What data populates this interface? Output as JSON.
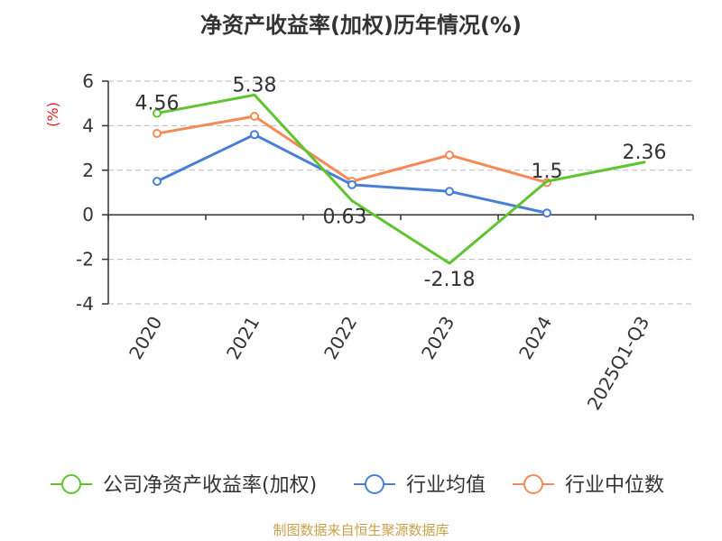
{
  "chart_data": {
    "type": "line",
    "title": "净资产收益率(加权)历年情况(%)",
    "ylabel": "(%)",
    "categories": [
      "2020",
      "2021",
      "2022",
      "2023",
      "2024",
      "2025Q1-Q3"
    ],
    "ylim": [
      -4,
      6
    ],
    "yticks": [
      6,
      4,
      2,
      0,
      -2,
      -4
    ],
    "grid": true,
    "legend_position": "bottom",
    "series": [
      {
        "name": "公司净资产收益率(加权)",
        "color": "#5ec42f",
        "values": [
          4.56,
          5.38,
          0.63,
          -2.18,
          1.5,
          2.36
        ],
        "labels": [
          "4.56",
          "5.38",
          "0.63",
          "-2.18",
          "1.5",
          "2.36"
        ],
        "marker": "hollow-start"
      },
      {
        "name": "行业均值",
        "color": "#4a7fd6",
        "values": [
          1.5,
          3.6,
          1.35,
          1.05,
          0.08,
          null
        ]
      },
      {
        "name": "行业中位数",
        "color": "#f48a57",
        "values": [
          3.65,
          4.42,
          1.5,
          2.68,
          1.45,
          null
        ]
      }
    ]
  },
  "footer": {
    "source": "制图数据来自恒生聚源数据库"
  }
}
